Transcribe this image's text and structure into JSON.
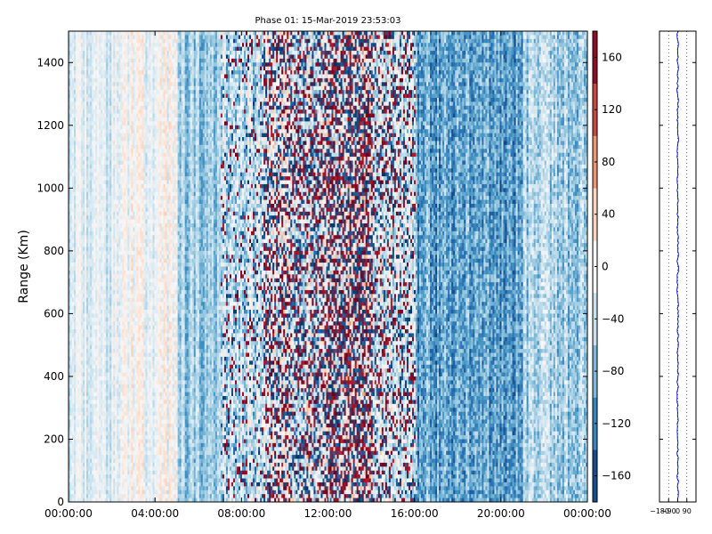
{
  "chart_data": {
    "type": "heatmap",
    "title": "Phase 01: 15-Mar-2019 23:53:03",
    "ylabel": "Range (Km)",
    "xlim_hours": [
      0,
      24
    ],
    "ylim": [
      0,
      1500
    ],
    "x_ticks": [
      "00:00:00",
      "04:00:00",
      "08:00:00",
      "12:00:00",
      "16:00:00",
      "20:00:00",
      "00:00:00"
    ],
    "y_ticks": [
      0,
      200,
      400,
      600,
      800,
      1000,
      1200,
      1400
    ],
    "colorbar": {
      "colormap": "RdBu_r",
      "range": [
        -180,
        180
      ],
      "ticks": [
        -160,
        -120,
        -80,
        -40,
        0,
        40,
        80,
        120,
        160
      ]
    },
    "phase_profile": {
      "xlim": [
        -180,
        180
      ],
      "tick_labels": [
        "−180",
        "−90",
        "0",
        "90"
      ],
      "mean_value": 0,
      "line_color": "#0000cc"
    },
    "colors": {
      "blue_dark": "#053061",
      "red_dark": "#67001f",
      "neutral": "#f7f7f7"
    }
  }
}
